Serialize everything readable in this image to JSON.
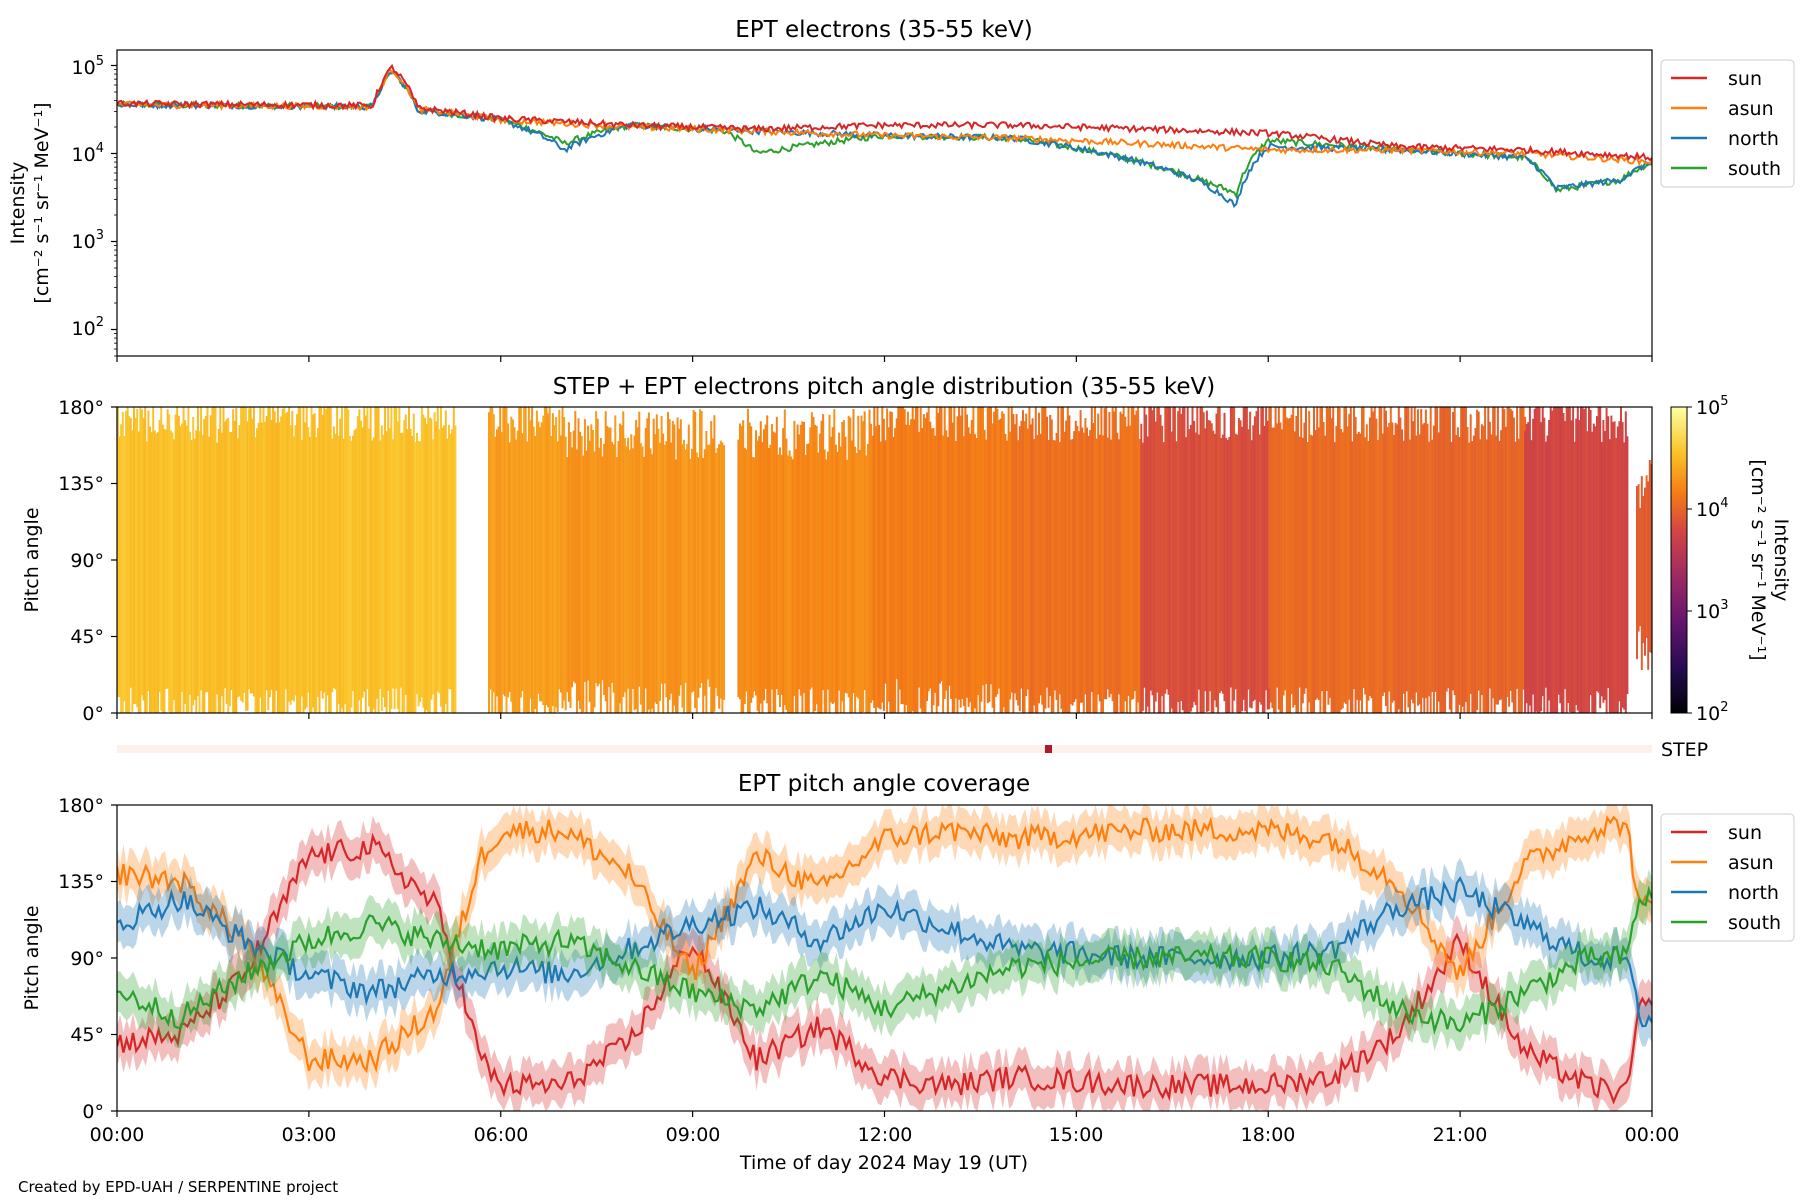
{
  "figure": {
    "credit": "Created by EPD-UAH / SERPENTINE project",
    "xlabel": "Time of day 2024 May 19 (UT)",
    "xticks": [
      "00:00",
      "03:00",
      "06:00",
      "09:00",
      "12:00",
      "15:00",
      "18:00",
      "21:00",
      "00:00"
    ],
    "colors": {
      "sun": "#d62728",
      "asun": "#ff7f0e",
      "north": "#1f77b4",
      "south": "#2ca02c"
    }
  },
  "panel1": {
    "title": "EPT electrons (35-55 keV)",
    "ylabel_line1": "Intensity",
    "ylabel_line2": "[cm⁻² s⁻¹ sr⁻¹ MeV⁻¹]",
    "yticks": [
      {
        "base": "10",
        "exp": "5"
      },
      {
        "base": "10",
        "exp": "4"
      },
      {
        "base": "10",
        "exp": "3"
      },
      {
        "base": "10",
        "exp": "2"
      }
    ],
    "legend": [
      "sun",
      "asun",
      "north",
      "south"
    ]
  },
  "panel2": {
    "title": "STEP + EPT electrons pitch angle distribution (35-55 keV)",
    "ylabel": "Pitch angle",
    "yticks": [
      "180°",
      "135°",
      "90°",
      "45°",
      "0°"
    ],
    "colorbar_label_line1": "Intensity",
    "colorbar_label_line2": "[cm⁻² s⁻¹ sr⁻¹ MeV⁻¹]",
    "colorbar_ticks": [
      {
        "base": "10",
        "exp": "5"
      },
      {
        "base": "10",
        "exp": "4"
      },
      {
        "base": "10",
        "exp": "3"
      },
      {
        "base": "10",
        "exp": "2"
      }
    ]
  },
  "step_strip": {
    "label": "STEP"
  },
  "panel3": {
    "title": "EPT pitch angle coverage",
    "ylabel": "Pitch angle",
    "yticks": [
      "180°",
      "135°",
      "90°",
      "45°",
      "0°"
    ],
    "legend": [
      "sun",
      "asun",
      "north",
      "south"
    ]
  },
  "chart_data": [
    {
      "type": "line",
      "title": "EPT electrons (35-55 keV)",
      "ylabel": "Intensity [cm⁻² s⁻¹ sr⁻¹ MeV⁻¹]",
      "yscale": "log",
      "ylim": [
        50,
        150000
      ],
      "xlim": [
        "00:00",
        "24:00"
      ],
      "legend_position": "outside-right",
      "series": [
        {
          "name": "sun",
          "x": [
            0,
            2,
            4,
            4.3,
            4.7,
            6,
            8,
            10,
            12,
            14,
            16,
            18,
            20,
            22,
            24
          ],
          "values": [
            37000,
            36000,
            35000,
            95000,
            33000,
            25000,
            21000,
            19000,
            21000,
            21000,
            19000,
            17000,
            12000,
            11000,
            9000
          ]
        },
        {
          "name": "asun",
          "x": [
            0,
            2,
            4,
            4.3,
            4.7,
            6,
            8,
            10,
            12,
            14,
            16,
            18,
            20,
            22,
            24
          ],
          "values": [
            36000,
            35000,
            34000,
            90000,
            32000,
            24000,
            20000,
            18000,
            16000,
            15000,
            13000,
            11000,
            11000,
            10000,
            8000
          ]
        },
        {
          "name": "north",
          "x": [
            0,
            2,
            4,
            4.3,
            4.7,
            6,
            7,
            8,
            10,
            12,
            14,
            16,
            17,
            17.5,
            18,
            20,
            22,
            22.5,
            23.5,
            24
          ],
          "values": [
            36000,
            35000,
            34000,
            85000,
            31000,
            24000,
            11000,
            21000,
            18000,
            16000,
            15000,
            8000,
            4500,
            2500,
            12000,
            11000,
            9000,
            4000,
            5000,
            8000
          ]
        },
        {
          "name": "south",
          "x": [
            0,
            2,
            4,
            4.3,
            4.7,
            6,
            7,
            8,
            9.5,
            10,
            12,
            14,
            16,
            17,
            17.5,
            18,
            20,
            22,
            22.5,
            23.5,
            24
          ],
          "values": [
            36000,
            35000,
            34000,
            85000,
            31000,
            24000,
            13000,
            21000,
            18000,
            10000,
            16000,
            15000,
            8000,
            4800,
            3500,
            14000,
            11000,
            9000,
            3800,
            5000,
            8000
          ]
        }
      ]
    },
    {
      "type": "heatmap",
      "title": "STEP + EPT electrons pitch angle distribution (35-55 keV)",
      "ylabel": "Pitch angle",
      "ylim": [
        0,
        180
      ],
      "xlim": [
        "00:00",
        "24:00"
      ],
      "colorbar": {
        "label": "Intensity [cm⁻² s⁻¹ sr⁻¹ MeV⁻¹]",
        "scale": "log",
        "range": [
          100,
          100000
        ],
        "colormap": "inferno"
      },
      "segments": [
        {
          "t0": 0.0,
          "t1": 1.5,
          "lo": 0,
          "hi": 180,
          "intensity": 35000
        },
        {
          "t0": 1.5,
          "t1": 3.5,
          "lo": 0,
          "hi": 180,
          "intensity": 34000
        },
        {
          "t0": 3.5,
          "t1": 5.3,
          "lo": 0,
          "hi": 180,
          "intensity": 36000
        },
        {
          "t0": 5.8,
          "t1": 7.0,
          "lo": 0,
          "hi": 180,
          "intensity": 22000
        },
        {
          "t0": 7.0,
          "t1": 9.5,
          "lo": 5,
          "hi": 170,
          "intensity": 20000
        },
        {
          "t0": 9.7,
          "t1": 11.8,
          "lo": 0,
          "hi": 170,
          "intensity": 17000
        },
        {
          "t0": 11.8,
          "t1": 14.0,
          "lo": 5,
          "hi": 180,
          "intensity": 14000
        },
        {
          "t0": 14.0,
          "t1": 16.0,
          "lo": 0,
          "hi": 180,
          "intensity": 12000
        },
        {
          "t0": 16.0,
          "t1": 18.0,
          "lo": 0,
          "hi": 180,
          "intensity": 7000
        },
        {
          "t0": 18.0,
          "t1": 20.0,
          "lo": 0,
          "hi": 180,
          "intensity": 11000
        },
        {
          "t0": 20.0,
          "t1": 22.0,
          "lo": 0,
          "hi": 180,
          "intensity": 10000
        },
        {
          "t0": 22.0,
          "t1": 23.6,
          "lo": 0,
          "hi": 180,
          "intensity": 6000
        },
        {
          "t0": 23.75,
          "t1": 24.0,
          "lo": 40,
          "hi": 140,
          "intensity": 9000
        }
      ]
    },
    {
      "type": "line",
      "title": "EPT pitch angle coverage",
      "ylabel": "Pitch angle",
      "ylim": [
        0,
        180
      ],
      "xlim": [
        "00:00",
        "24:00"
      ],
      "legend_position": "outside-right",
      "series": [
        {
          "name": "sun",
          "x": [
            0,
            1,
            2,
            3,
            4,
            5,
            5.7,
            6,
            7,
            8,
            9,
            10,
            11,
            12,
            13,
            14,
            16,
            18,
            19,
            20,
            21,
            22,
            23,
            23.6,
            23.8,
            24
          ],
          "values": [
            40,
            45,
            80,
            150,
            155,
            120,
            30,
            15,
            15,
            40,
            100,
            30,
            50,
            20,
            15,
            20,
            15,
            15,
            20,
            45,
            100,
            35,
            15,
            10,
            60,
            60
          ]
        },
        {
          "name": "asun",
          "x": [
            0,
            1,
            2,
            3,
            4,
            5,
            5.7,
            6,
            7,
            8,
            9,
            10,
            11,
            12,
            13,
            14,
            16,
            18,
            19,
            20,
            21,
            22,
            23,
            23.6,
            23.8,
            24
          ],
          "values": [
            140,
            135,
            100,
            30,
            30,
            60,
            150,
            165,
            165,
            140,
            80,
            150,
            130,
            160,
            165,
            160,
            165,
            165,
            160,
            135,
            80,
            145,
            165,
            170,
            120,
            120
          ]
        },
        {
          "name": "north",
          "x": [
            0,
            1,
            2,
            3,
            4,
            5,
            6,
            7,
            8,
            9,
            10,
            11,
            12,
            14,
            16,
            18,
            19,
            20,
            21,
            22,
            23,
            23.6,
            23.8,
            24
          ],
          "values": [
            110,
            125,
            100,
            80,
            70,
            80,
            85,
            80,
            95,
            110,
            120,
            100,
            120,
            95,
            90,
            90,
            95,
            120,
            130,
            110,
            90,
            90,
            55,
            55
          ]
        },
        {
          "name": "south",
          "x": [
            0,
            1,
            2,
            3,
            4,
            5,
            6,
            7,
            8,
            9,
            10,
            11,
            12,
            14,
            16,
            18,
            19,
            20,
            21,
            22,
            23,
            23.6,
            23.8,
            24
          ],
          "values": [
            70,
            55,
            80,
            100,
            110,
            100,
            95,
            100,
            85,
            70,
            60,
            80,
            60,
            85,
            90,
            90,
            85,
            60,
            50,
            70,
            90,
            90,
            125,
            125
          ]
        }
      ]
    }
  ]
}
